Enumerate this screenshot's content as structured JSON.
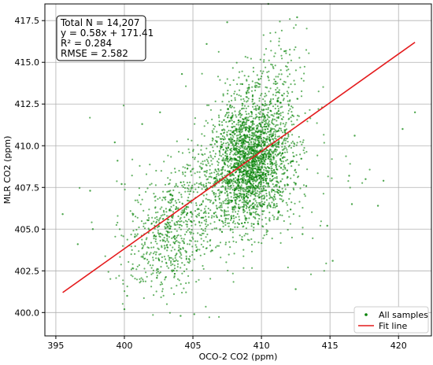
{
  "chart_data": {
    "type": "scatter",
    "title": "",
    "xlabel": "OCO-2 CO2 (ppm)",
    "ylabel": "MLR CO2 (ppm)",
    "xlim": [
      394.2,
      422.4
    ],
    "ylim": [
      398.6,
      418.5
    ],
    "x_ticks": [
      395,
      400,
      405,
      410,
      415,
      420
    ],
    "x_tick_labels": [
      "395",
      "400",
      "405",
      "410",
      "415",
      "420"
    ],
    "y_ticks": [
      400.0,
      402.5,
      405.0,
      407.5,
      410.0,
      412.5,
      415.0,
      417.5
    ],
    "y_tick_labels": [
      "400.0",
      "402.5",
      "405.0",
      "407.5",
      "410.0",
      "412.5",
      "415.0",
      "417.5"
    ],
    "grid": true,
    "annotations": [
      "Total N = 14,207",
      "y = 0.58x + 171.41",
      "R² = 0.284",
      "RMSE = 2.582"
    ],
    "stats": {
      "n": 14207,
      "slope": 0.58,
      "intercept": 171.41,
      "r2": 0.284,
      "rmse": 2.582
    },
    "series": [
      {
        "name": "All samples",
        "kind": "scatter",
        "color": "#008000",
        "clusters": [
          {
            "cx": 409.2,
            "cy": 409.0,
            "sx": 1.5,
            "sy": 1.9,
            "rho": 0.15,
            "weight": 0.7
          },
          {
            "cx": 403.6,
            "cy": 405.0,
            "sx": 1.7,
            "sy": 1.9,
            "rho": 0.35,
            "weight": 0.2
          },
          {
            "cx": 410.5,
            "cy": 413.5,
            "sx": 1.4,
            "sy": 1.6,
            "rho": 0.1,
            "weight": 0.05
          },
          {
            "cx": 408.5,
            "cy": 407.5,
            "sx": 4.5,
            "sy": 3.2,
            "rho": 0.2,
            "weight": 0.05
          }
        ],
        "outliers": [
          [
            395.5,
            405.9
          ],
          [
            421.2,
            412.0
          ],
          [
            420.3,
            411.0
          ],
          [
            418.9,
            407.9
          ],
          [
            418.5,
            406.4
          ],
          [
            417.6,
            408.0
          ],
          [
            416.8,
            410.6
          ],
          [
            416.4,
            408.2
          ],
          [
            410.5,
            418.5
          ],
          [
            412.6,
            417.7
          ],
          [
            399.5,
            409.1
          ],
          [
            399.8,
            407.7
          ],
          [
            399.3,
            410.2
          ],
          [
            400.0,
            400.2
          ],
          [
            400.2,
            401.0
          ],
          [
            401.3,
            411.3
          ],
          [
            402.6,
            412.0
          ],
          [
            404.2,
            414.3
          ],
          [
            406.0,
            416.1
          ],
          [
            407.5,
            417.4
          ],
          [
            397.7,
            405.0
          ],
          [
            397.5,
            407.3
          ],
          [
            415.2,
            403.1
          ],
          [
            412.5,
            401.4
          ],
          [
            404.1,
            399.8
          ],
          [
            405.1,
            399.9
          ],
          [
            413.0,
            404.7
          ],
          [
            414.8,
            405.2
          ],
          [
            416.6,
            406.5
          ],
          [
            396.6,
            404.1
          ]
        ],
        "point_count_drawn": 3500
      },
      {
        "name": "Fit line",
        "kind": "line",
        "color": "#e41a1c",
        "x": [
          395.5,
          421.2
        ],
        "y": [
          401.2,
          416.2
        ]
      }
    ],
    "legend": {
      "placement": "bottom-right",
      "entries": [
        "All samples",
        "Fit line"
      ]
    }
  }
}
